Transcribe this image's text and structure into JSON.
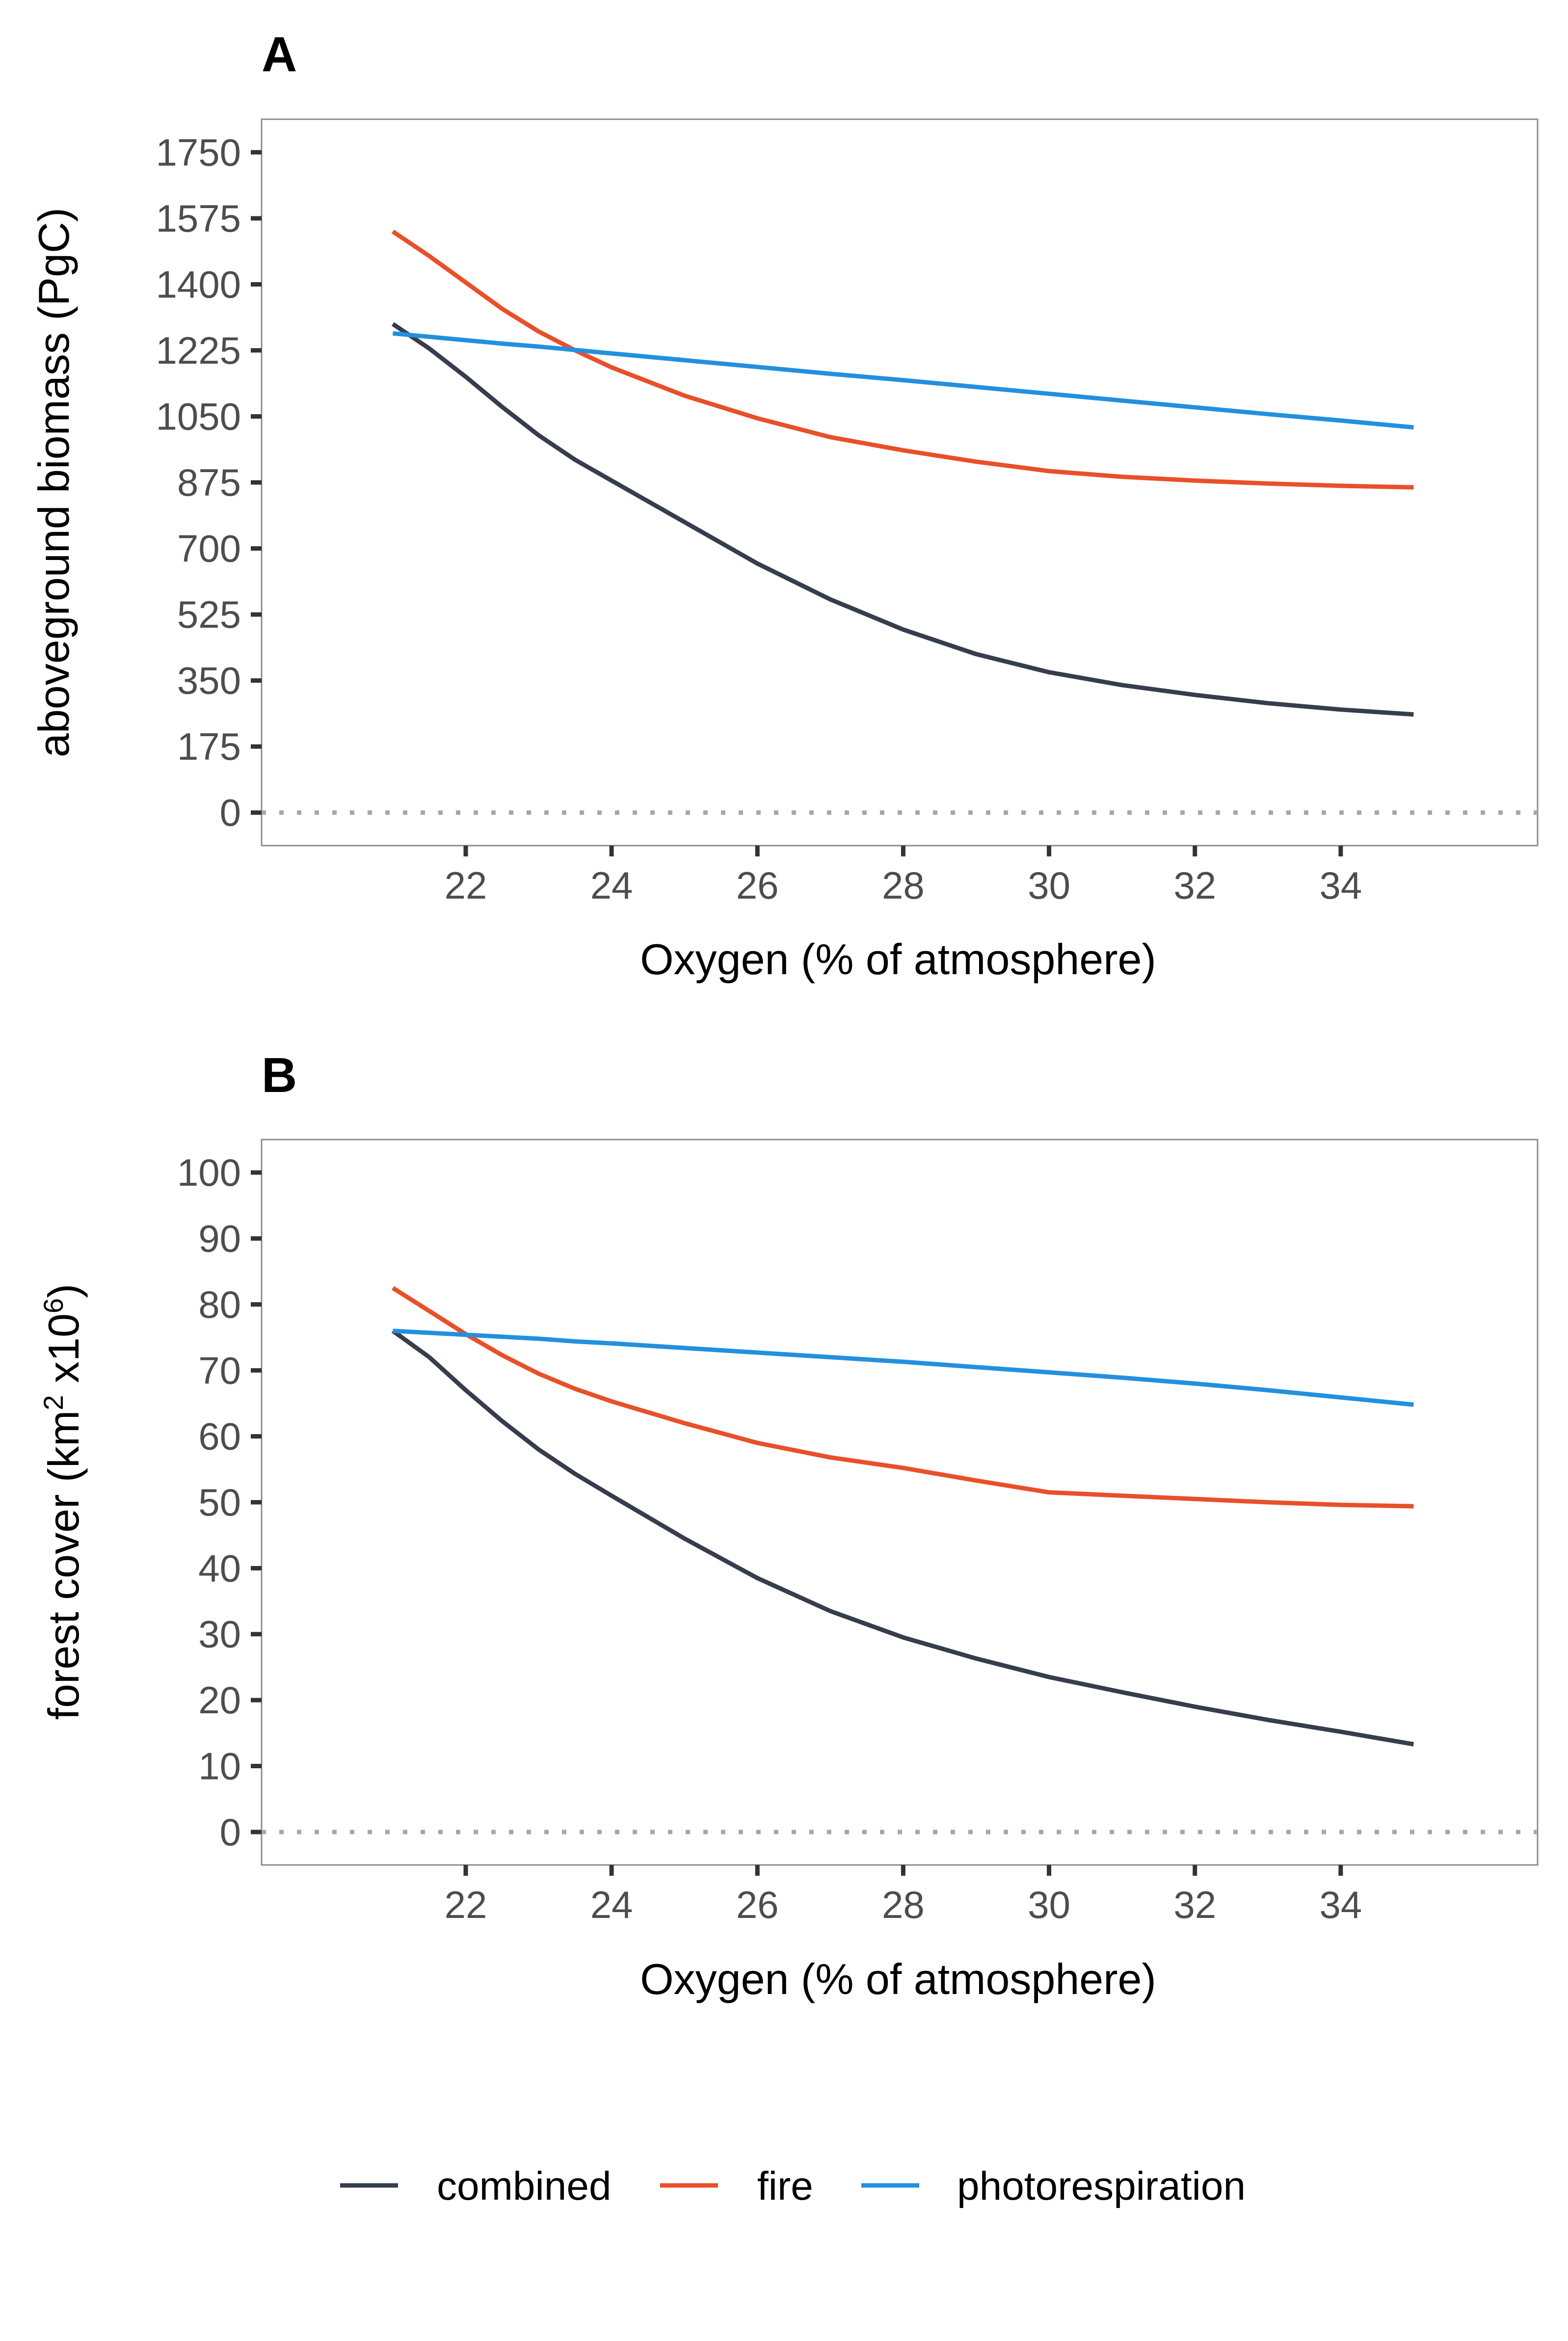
{
  "chart_data": [
    {
      "panel": "A",
      "type": "line",
      "xlabel": "Oxygen (% of atmosphere)",
      "ylabel": "aboveground biomass (PgC)",
      "xlim": [
        19.2,
        36.7
      ],
      "ylim": [
        -87.5,
        1837.5
      ],
      "x_ticks": [
        "22",
        "24",
        "26",
        "28",
        "30",
        "32",
        "34"
      ],
      "y_ticks": [
        "0",
        "175",
        "350",
        "525",
        "700",
        "875",
        "1050",
        "1225",
        "1400",
        "1575",
        "1750"
      ],
      "reference_line": {
        "y": 0,
        "style": "dotted"
      },
      "x": [
        21,
        21.5,
        22,
        22.5,
        23,
        23.5,
        24,
        25,
        26,
        27,
        28,
        29,
        30,
        31,
        32,
        33,
        34,
        35
      ],
      "series": [
        {
          "name": "combined",
          "values": [
            1295,
            1230,
            1155,
            1075,
            1000,
            935,
            880,
            770,
            660,
            565,
            485,
            420,
            372,
            338,
            312,
            290,
            273,
            260
          ]
        },
        {
          "name": "fire",
          "values": [
            1540,
            1475,
            1405,
            1335,
            1275,
            1225,
            1180,
            1105,
            1045,
            995,
            960,
            930,
            905,
            890,
            880,
            872,
            866,
            862
          ]
        },
        {
          "name": "photorespiration",
          "values": [
            1270,
            1261,
            1252,
            1243,
            1235,
            1226,
            1217,
            1199,
            1181,
            1163,
            1146,
            1128,
            1110,
            1092,
            1074,
            1056,
            1039,
            1021
          ]
        }
      ],
      "grid": false,
      "legend": "bottom"
    },
    {
      "panel": "B",
      "type": "line",
      "xlabel": "Oxygen (% of atmosphere)",
      "ylabel_main": "forest cover (km",
      "ylabel_sup1": "2",
      "ylabel_mid": " x10",
      "ylabel_sup2": "6",
      "ylabel_end": ")",
      "xlim": [
        19.2,
        36.7
      ],
      "ylim": [
        -5,
        105
      ],
      "x_ticks": [
        "22",
        "24",
        "26",
        "28",
        "30",
        "32",
        "34"
      ],
      "y_ticks": [
        "0",
        "10",
        "20",
        "30",
        "40",
        "50",
        "60",
        "70",
        "80",
        "90",
        "100"
      ],
      "reference_line": {
        "y": 0,
        "style": "dotted"
      },
      "x": [
        21,
        21.5,
        22,
        22.5,
        23,
        23.5,
        24,
        25,
        26,
        27,
        28,
        29,
        30,
        31,
        32,
        33,
        34,
        35
      ],
      "series": [
        {
          "name": "combined",
          "values": [
            76,
            72,
            67,
            62.3,
            58,
            54.3,
            51,
            44.5,
            38.5,
            33.5,
            29.5,
            26.3,
            23.5,
            21.2,
            19,
            17,
            15.2,
            13.3
          ]
        },
        {
          "name": "fire",
          "values": [
            82.5,
            79,
            75.5,
            72.3,
            69.5,
            67.2,
            65.3,
            62,
            59,
            56.8,
            55.2,
            53.3,
            51.5,
            51,
            50.5,
            50,
            49.6,
            49.4
          ]
        },
        {
          "name": "photorespiration",
          "values": [
            76,
            75.7,
            75.4,
            75.1,
            74.8,
            74.4,
            74.1,
            73.4,
            72.7,
            72,
            71.3,
            70.5,
            69.7,
            68.9,
            68,
            67,
            65.9,
            64.8
          ]
        }
      ],
      "grid": false,
      "legend": "bottom"
    }
  ],
  "legend": {
    "items": [
      {
        "name": "combined",
        "color": "#363d4d"
      },
      {
        "name": "fire",
        "color": "#e8502a"
      },
      {
        "name": "photorespiration",
        "color": "#2390de"
      }
    ]
  },
  "colors": {
    "combined": "#363d4d",
    "fire": "#e8502a",
    "photorespiration": "#2390de",
    "reference_line": "#a6a6a6",
    "panel_border": "#8c8c8c"
  }
}
